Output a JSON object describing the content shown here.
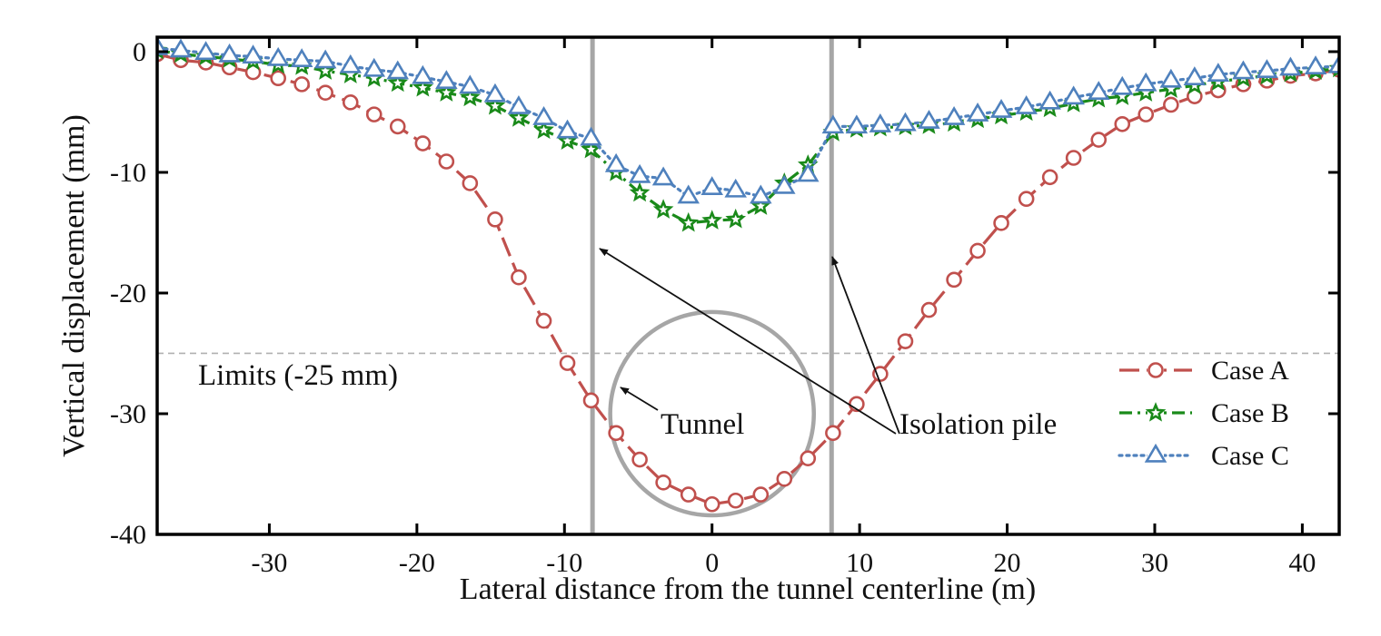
{
  "chart_data": {
    "type": "line",
    "title": "",
    "xlabel": "Lateral distance from the tunnel centerline (m)",
    "ylabel": "Vertical displacement (mm)",
    "xlim": [
      -37.6,
      42.5
    ],
    "ylim": [
      -40,
      1.2
    ],
    "xticks": [
      -30,
      -20,
      -10,
      0,
      10,
      20,
      30,
      40
    ],
    "yticks": [
      0,
      -10,
      -20,
      -30,
      -40
    ],
    "xtick_labels": [
      "-30",
      "-20",
      "-10",
      "0",
      "10",
      "20",
      "30",
      "40"
    ],
    "ytick_labels": [
      "0",
      "-10",
      "-20",
      "-30",
      "-40"
    ],
    "grid": false,
    "legend_position": "bottom-right",
    "x": [
      -37.6,
      -36.0,
      -34.3,
      -32.7,
      -31.1,
      -29.4,
      -27.8,
      -26.2,
      -24.5,
      -22.9,
      -21.3,
      -19.6,
      -18.0,
      -16.4,
      -14.7,
      -13.1,
      -11.4,
      -9.8,
      -8.2,
      -6.5,
      -4.9,
      -3.3,
      -1.6,
      0.0,
      1.6,
      3.3,
      4.9,
      6.5,
      8.2,
      9.8,
      11.4,
      13.1,
      14.7,
      16.4,
      18.0,
      19.6,
      21.3,
      22.9,
      24.5,
      26.2,
      27.8,
      29.4,
      31.1,
      32.7,
      34.3,
      36.0,
      37.6,
      39.2,
      40.9,
      42.5
    ],
    "series": [
      {
        "name": "Case A",
        "color": "#c0504d",
        "marker": "circle",
        "line_style": "long-dash",
        "values": [
          -0.2,
          -0.7,
          -0.9,
          -1.3,
          -1.7,
          -2.2,
          -2.7,
          -3.4,
          -4.2,
          -5.2,
          -6.2,
          -7.6,
          -9.1,
          -10.9,
          -13.9,
          -18.7,
          -22.3,
          -25.8,
          -28.9,
          -31.6,
          -33.8,
          -35.7,
          -36.7,
          -37.5,
          -37.2,
          -36.7,
          -35.4,
          -33.7,
          -31.6,
          -29.2,
          -26.7,
          -24.0,
          -21.4,
          -18.9,
          -16.5,
          -14.2,
          -12.2,
          -10.4,
          -8.8,
          -7.3,
          -6.0,
          -5.2,
          -4.4,
          -3.7,
          -3.2,
          -2.7,
          -2.4,
          -2.0,
          -1.8,
          -1.5
        ]
      },
      {
        "name": "Case B",
        "color": "#1a8a1a",
        "marker": "star",
        "line_style": "dash-dot",
        "values": [
          0.1,
          -0.2,
          -0.4,
          -0.6,
          -0.8,
          -1.1,
          -1.2,
          -1.6,
          -1.9,
          -2.2,
          -2.6,
          -3.0,
          -3.4,
          -3.8,
          -4.5,
          -5.5,
          -6.5,
          -7.4,
          -8.1,
          -10.0,
          -11.7,
          -13.1,
          -14.2,
          -14.0,
          -13.9,
          -12.8,
          -10.9,
          -9.4,
          -6.7,
          -6.4,
          -6.3,
          -6.2,
          -6.1,
          -5.9,
          -5.6,
          -5.3,
          -5.0,
          -4.7,
          -4.3,
          -3.9,
          -3.7,
          -3.4,
          -3.1,
          -2.8,
          -2.5,
          -2.2,
          -2.0,
          -1.8,
          -1.6,
          -1.4
        ]
      },
      {
        "name": "Case C",
        "color": "#4f81bd",
        "marker": "triangle",
        "line_style": "dotted",
        "values": [
          0.3,
          0.1,
          -0.1,
          -0.3,
          -0.4,
          -0.6,
          -0.7,
          -0.8,
          -1.2,
          -1.5,
          -1.7,
          -2.1,
          -2.5,
          -2.9,
          -3.6,
          -4.6,
          -5.5,
          -6.6,
          -7.2,
          -9.4,
          -10.3,
          -10.5,
          -12.0,
          -11.3,
          -11.5,
          -12.0,
          -11.2,
          -10.2,
          -6.2,
          -6.2,
          -6.1,
          -6.0,
          -5.8,
          -5.5,
          -5.2,
          -4.9,
          -4.6,
          -4.2,
          -3.8,
          -3.4,
          -3.0,
          -2.7,
          -2.4,
          -2.2,
          -1.9,
          -1.7,
          -1.6,
          -1.4,
          -1.3,
          -1.2
        ]
      }
    ],
    "reference_lines": {
      "limit": {
        "y": -25,
        "label": "Limits (-25 mm)",
        "color": "#b0b0b0"
      },
      "isolation_piles": {
        "x": [
          -8.1,
          8.1
        ],
        "color": "#a6a6a6"
      }
    },
    "tunnel": {
      "center_x": 0,
      "center_y": -30,
      "radius_x_m": 6.9,
      "color": "#a6a6a6"
    },
    "annotations": {
      "tunnel_label": "Tunnel",
      "pile_label": "Isolation pile",
      "limit_label": "Limits (-25 mm)"
    },
    "legend": [
      {
        "label": "Case A"
      },
      {
        "label": "Case B"
      },
      {
        "label": "Case C"
      }
    ]
  }
}
